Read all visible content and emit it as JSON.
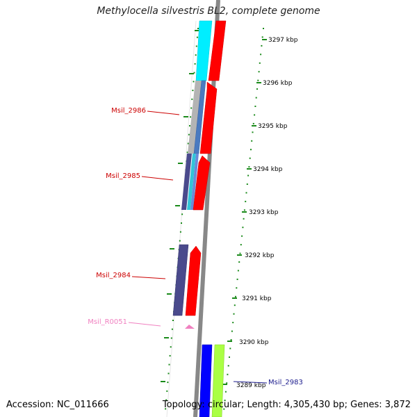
{
  "title": "Methylocella silvestris BL2, complete genome",
  "accession_text": "Accession: NC_011666",
  "summary_text": "Topology: circular; Length: 4,305,430 bp; Genes: 3,872",
  "scale": {
    "unit_labels": [
      "3297 kbp",
      "3296 kbp",
      "3295 kbp",
      "3294 kbp",
      "3293 kbp",
      "3292 kbp",
      "3291 kbp",
      "3290 kbp",
      "3289 kbp"
    ]
  },
  "genes": [
    {
      "name": "Msil_2986",
      "color": "#cc0000"
    },
    {
      "name": "Msil_2985",
      "color": "#cc0000"
    },
    {
      "name": "Msil_2984",
      "color": "#cc0000"
    },
    {
      "name": "Msil_R0051",
      "color": "#f080c0"
    },
    {
      "name": "Msil_2983",
      "color": "#1a1a8c"
    }
  ],
  "colors": {
    "backbone": "#888888",
    "tick_green": "#1a8a1a",
    "cds_red": "#ff0000",
    "cyan": "#00eeff",
    "steel_blue": "#4a7ac0",
    "slate_purple": "#4a4a8c",
    "blue": "#0000ff",
    "lime": "#aaff44",
    "rna_pink": "#f080c0"
  }
}
